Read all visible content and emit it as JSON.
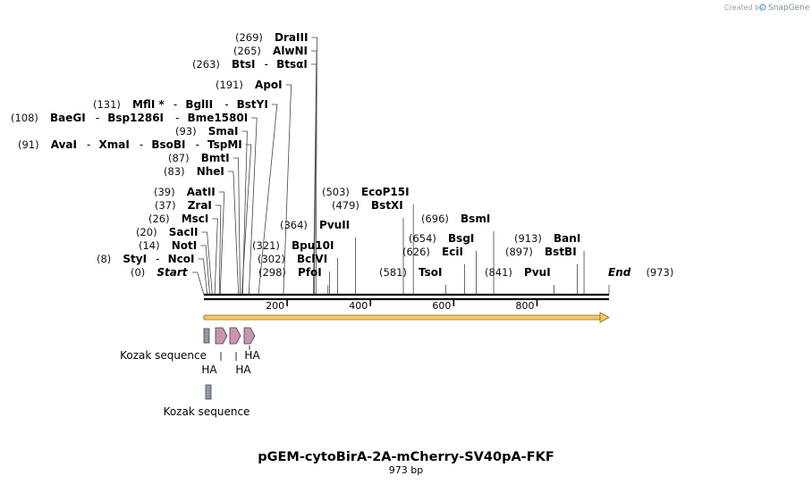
{
  "map": {
    "title": "pGEM-cytoBirA-2A-mCherry-SV40pA-FKF",
    "size_label": "973 bp",
    "length": 973
  },
  "watermark": {
    "prefix": "Created by",
    "brand": "SnapGene"
  },
  "ruler": {
    "ticks": [
      "200",
      "400",
      "600",
      "800"
    ]
  },
  "sites": [
    {
      "parts": [
        {
          "pos": "(0)",
          "name": "Start",
          "italic": true
        }
      ]
    },
    {
      "parts": [
        {
          "pos": "(8)",
          "name": "StyI"
        },
        {
          "name": "NcoI"
        }
      ]
    },
    {
      "parts": [
        {
          "pos": "(14)",
          "name": "NotI"
        }
      ]
    },
    {
      "parts": [
        {
          "pos": "(20)",
          "name": "SacII"
        }
      ]
    },
    {
      "parts": [
        {
          "pos": "(26)",
          "name": "MscI"
        }
      ]
    },
    {
      "parts": [
        {
          "pos": "(37)",
          "name": "ZraI"
        }
      ]
    },
    {
      "parts": [
        {
          "pos": "(39)",
          "name": "AatII"
        }
      ]
    },
    {
      "parts": [
        {
          "pos": "(83)",
          "name": "NheI"
        }
      ]
    },
    {
      "parts": [
        {
          "pos": "(87)",
          "name": "BmtI"
        }
      ]
    },
    {
      "parts": [
        {
          "pos": "(91)",
          "name": "AvaI"
        },
        {
          "name": "XmaI"
        },
        {
          "name": "BsoBI"
        },
        {
          "name": "TspMI"
        }
      ]
    },
    {
      "parts": [
        {
          "pos": "(93)",
          "name": "SmaI"
        }
      ]
    },
    {
      "parts": [
        {
          "pos": "(108)",
          "name": "BaeGI"
        },
        {
          "name": "Bsp1286I"
        },
        {
          "name": "Bme1580I"
        }
      ]
    },
    {
      "parts": [
        {
          "pos": "(131)",
          "name": "MflI *"
        },
        {
          "name": "BglII"
        },
        {
          "name": "BstYI"
        }
      ]
    },
    {
      "parts": [
        {
          "pos": "(191)",
          "name": "ApoI"
        }
      ]
    },
    {
      "parts": [
        {
          "pos": "(263)",
          "name": "BtsI"
        },
        {
          "name": "BtsαI"
        }
      ]
    },
    {
      "parts": [
        {
          "pos": "(265)",
          "name": "AlwNI"
        }
      ]
    },
    {
      "parts": [
        {
          "pos": "(269)",
          "name": "DraIII"
        }
      ]
    },
    {
      "parts": [
        {
          "pos": "(298)",
          "name": "PfoI"
        }
      ]
    },
    {
      "parts": [
        {
          "pos": "(302)",
          "name": "BclVI"
        }
      ]
    },
    {
      "parts": [
        {
          "pos": "(321)",
          "name": "Bpu10I"
        }
      ]
    },
    {
      "parts": [
        {
          "pos": "(364)",
          "name": "PvuII"
        }
      ]
    },
    {
      "parts": [
        {
          "pos": "(479)",
          "name": "BstXI"
        }
      ]
    },
    {
      "parts": [
        {
          "pos": "(503)",
          "name": "EcoP15I"
        }
      ]
    },
    {
      "parts": [
        {
          "pos": "(581)",
          "name": "TsoI"
        }
      ]
    },
    {
      "parts": [
        {
          "pos": "(626)",
          "name": "EciI"
        }
      ]
    },
    {
      "parts": [
        {
          "pos": "(654)",
          "name": "BsgI"
        }
      ]
    },
    {
      "parts": [
        {
          "pos": "(696)",
          "name": "BsmI"
        }
      ]
    },
    {
      "parts": [
        {
          "pos": "(841)",
          "name": "PvuI"
        }
      ]
    },
    {
      "parts": [
        {
          "pos": "(897)",
          "name": "BstBI"
        }
      ]
    },
    {
      "parts": [
        {
          "pos": "(913)",
          "name": "BanI"
        }
      ]
    },
    {
      "parts": [
        {
          "name": "End",
          "italic": true
        },
        {
          "pos": "(973)"
        }
      ]
    }
  ],
  "features": [
    {
      "name": "Kozak sequence",
      "type": "box",
      "color": "#8e9aa6"
    },
    {
      "name": "HA",
      "type": "arrow",
      "color": "#c994b2"
    },
    {
      "name": "HA",
      "type": "arrow",
      "color": "#c994b2"
    },
    {
      "name": "HA",
      "type": "arrow",
      "color": "#c994b2"
    },
    {
      "name": "Kozak sequence",
      "type": "box",
      "color": "#8e9aa6"
    }
  ],
  "orf": {
    "color": "#f6c76a",
    "stroke": "#8a6a1c"
  }
}
